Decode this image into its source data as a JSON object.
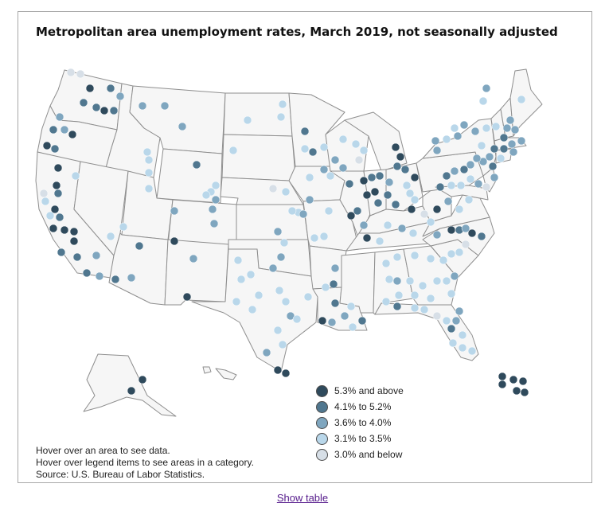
{
  "map": {
    "title": "Metropolitan area unemployment rates, March 2019, not seasonally adjusted",
    "legend": [
      {
        "label": "5.3% and above",
        "color": "#2f4a5c"
      },
      {
        "label": "4.1% to 5.2%",
        "color": "#50778f"
      },
      {
        "label": "3.6% to 4.0%",
        "color": "#7fa6bf"
      },
      {
        "label": "3.1% to 3.5%",
        "color": "#b9d7ea"
      },
      {
        "label": "3.0% and below",
        "color": "#d7dfe7"
      }
    ],
    "notes": [
      "Hover over an area to see data.",
      "Hover over legend items to see areas in a category.",
      "Source: U.S. Bureau of Labor Statistics."
    ]
  },
  "links": {
    "show_table": "Show table"
  }
}
